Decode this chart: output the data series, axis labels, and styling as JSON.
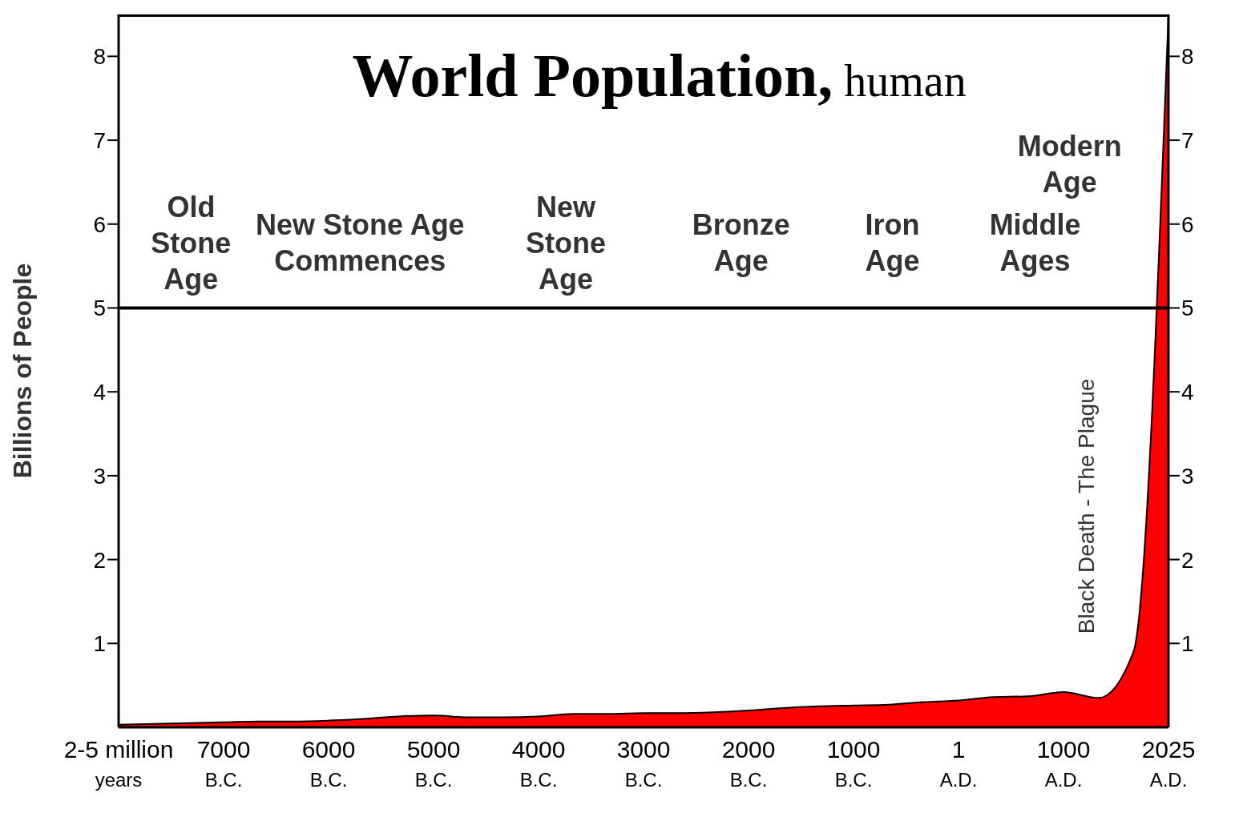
{
  "chart_data": {
    "type": "area",
    "title": "World Population,",
    "subtitle": "human",
    "ylabel": "Billions of People",
    "categories": [
      "2-5 million years",
      null,
      null,
      "7000 B.C.",
      null,
      null,
      "6000 B.C.",
      null,
      null,
      "5000 B.C.",
      null,
      null,
      "4000 B.C.",
      null,
      null,
      "3000 B.C.",
      null,
      null,
      "2000 B.C.",
      null,
      null,
      "1000 B.C.",
      null,
      null,
      "1 A.D.",
      null,
      null,
      "1000 A.D.",
      null,
      null,
      "2025 A.D."
    ],
    "series": [
      {
        "color": "#ff0000",
        "values": [
          0.03,
          0.04,
          0.05,
          0.06,
          0.07,
          0.07,
          0.08,
          0.1,
          0.13,
          0.14,
          0.12,
          0.12,
          0.13,
          0.16,
          0.16,
          0.17,
          0.17,
          0.18,
          0.2,
          0.23,
          0.25,
          0.26,
          0.27,
          0.3,
          0.32,
          0.36,
          0.37,
          0.42,
          0.35,
          0.9,
          8.5
        ]
      }
    ],
    "ylim": [
      0,
      8.5
    ],
    "yticks": [
      1,
      2,
      3,
      4,
      5,
      6,
      7,
      8
    ],
    "y2lim": [
      0,
      8.5
    ],
    "y2ticks": [
      1,
      2,
      3,
      4,
      5,
      6,
      7,
      8
    ],
    "ref_lines": [
      {
        "axis": "y",
        "value": 5,
        "color": "#000000"
      }
    ],
    "annotations": [
      "Old Stone Age",
      "New Stone Age Commences",
      "New Stone Age",
      "Bronze Age",
      "Iron Age",
      "Middle Ages",
      "Modern Age",
      "Black Death - The Plague"
    ],
    "grid": false,
    "legend": false
  }
}
